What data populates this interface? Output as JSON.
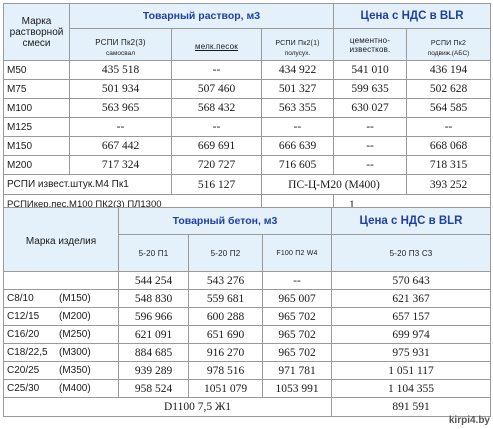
{
  "t1": {
    "grade_header": "Марка растворной смеси",
    "group_header": "Товарный раствор, м3",
    "price_header": "Цена с НДС в BLR",
    "cols": [
      {
        "main": "РСПИ Пк2(3)",
        "sub": "самосвал"
      },
      {
        "main": "мелк.песок",
        "sub": ""
      },
      {
        "main": "РСПИ Пк2(1)",
        "sub": "полусух."
      },
      {
        "main": "цементно-известков.",
        "sub": ""
      },
      {
        "main": "РСПИ Пк2",
        "sub": "подвиж.(АБС)"
      }
    ],
    "rows": [
      {
        "label": "М50",
        "vals": [
          "435 518",
          "--",
          "434 922",
          "541 010",
          "436 194"
        ]
      },
      {
        "label": "М75",
        "vals": [
          "501 934",
          "507 460",
          "501 327",
          "599 635",
          "502 628"
        ]
      },
      {
        "label": "М100",
        "vals": [
          "563 965",
          "568 432",
          "563 355",
          "630 027",
          "564 585"
        ]
      },
      {
        "label": "М125",
        "vals": [
          "--",
          "--",
          "--",
          "--",
          "--"
        ]
      },
      {
        "label": "М150",
        "vals": [
          "667 442",
          "669 691",
          "666 639",
          "--",
          "668 068"
        ]
      },
      {
        "label": "М200",
        "vals": [
          "717 324",
          "720 727",
          "716 605",
          "--",
          "718 315"
        ]
      }
    ],
    "extra1": {
      "label": "РСПИ извест.штук.М4 Пк1",
      "value": "516 127",
      "label2": "ПС-Ц-М20 (М400)",
      "value2": "393 252"
    },
    "extra2": {
      "label": "РСПИкер.пес.М100 ПК2(3) ПЛ1300",
      "value": "1"
    }
  },
  "t2": {
    "item_header": "Марка изделия",
    "group_header": "Товарный бетон, м3",
    "price_header": "Цена с НДС в BLR",
    "cols": [
      "5-20 П1",
      "5-20 П2",
      "F100 П2 W4",
      "5-20 П3 С3"
    ],
    "rows": [
      {
        "label": "",
        "grade": "",
        "vals": [
          "544 254",
          "543 276",
          "--",
          "570 643"
        ]
      },
      {
        "label": "С8/10",
        "grade": "(М150)",
        "vals": [
          "548 830",
          "559 681",
          "965 007",
          "621 367"
        ]
      },
      {
        "label": "С12/15",
        "grade": "(М200)",
        "vals": [
          "596 966",
          "600 288",
          "965 702",
          "657 157"
        ]
      },
      {
        "label": "С16/20",
        "grade": "(М250)",
        "vals": [
          "621 091",
          "651 690",
          "965 702",
          "699 974"
        ]
      },
      {
        "label": "С18/22,5",
        "grade": "(М300)",
        "vals": [
          "884 685",
          "916 270",
          "965 702",
          "975 931"
        ]
      },
      {
        "label": "С20/25",
        "grade": "(М350)",
        "vals": [
          "939 289",
          "978 516",
          "971 781",
          "1 051 117"
        ]
      },
      {
        "label": "С25/30",
        "grade": "(М400)",
        "vals": [
          "958 524",
          "1051 079",
          "1053 991",
          "1 104 355"
        ]
      }
    ],
    "footer": {
      "label": "D1100 7,5 Ж1",
      "value": "891 591"
    }
  },
  "watermark": "kirpi4.by"
}
